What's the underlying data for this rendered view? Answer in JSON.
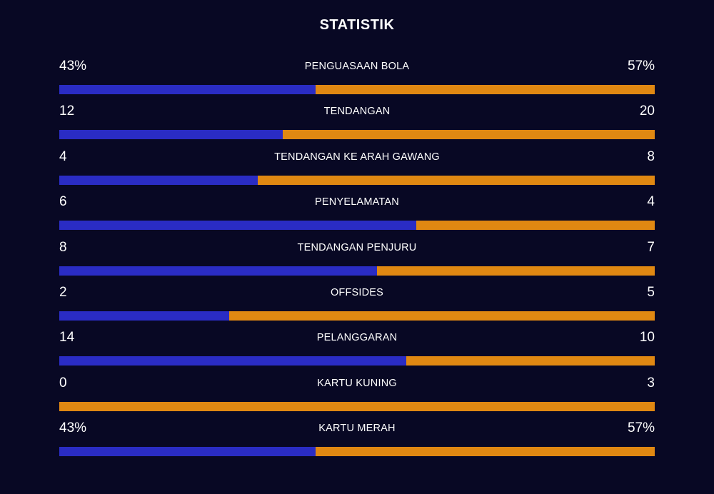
{
  "title": "STATISTIK",
  "colors": {
    "background": "#080824",
    "home": "#2a2cc4",
    "away": "#e08812"
  },
  "stats": [
    {
      "label": "PENGUASAAN BOLA",
      "home": "43%",
      "away": "57%",
      "home_share": 0.43
    },
    {
      "label": "TENDANGAN",
      "home": "12",
      "away": "20",
      "home_share": 0.375
    },
    {
      "label": "TENDANGAN KE ARAH GAWANG",
      "home": "4",
      "away": "8",
      "home_share": 0.3333
    },
    {
      "label": "PENYELAMATAN",
      "home": "6",
      "away": "4",
      "home_share": 0.6
    },
    {
      "label": "TENDANGAN PENJURU",
      "home": "8",
      "away": "7",
      "home_share": 0.5333
    },
    {
      "label": "OFFSIDES",
      "home": "2",
      "away": "5",
      "home_share": 0.2857
    },
    {
      "label": "PELANGGARAN",
      "home": "14",
      "away": "10",
      "home_share": 0.5833
    },
    {
      "label": "KARTU KUNING",
      "home": "0",
      "away": "3",
      "home_share": 0.0
    },
    {
      "label": "KARTU MERAH",
      "home": "43%",
      "away": "57%",
      "home_share": 0.43
    }
  ]
}
